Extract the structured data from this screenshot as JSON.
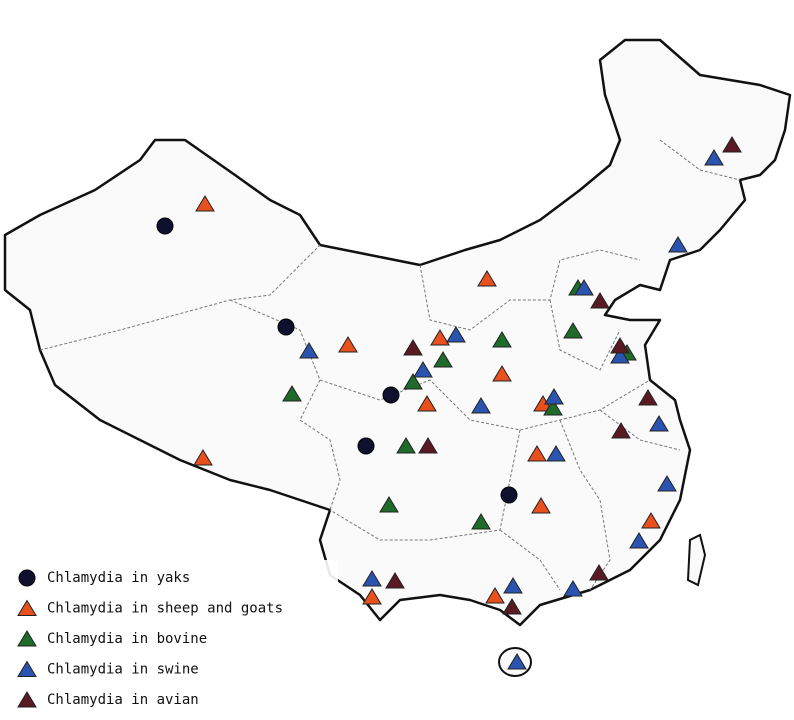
{
  "legend": {
    "items": [
      {
        "label": "Chlamydia in yaks"
      },
      {
        "label": "Chlamydia in sheep and goats"
      },
      {
        "label": "Chlamydia in bovine"
      },
      {
        "label": "Chlamydia in swine"
      },
      {
        "label": "Chlamydia in avian"
      }
    ]
  }
}
